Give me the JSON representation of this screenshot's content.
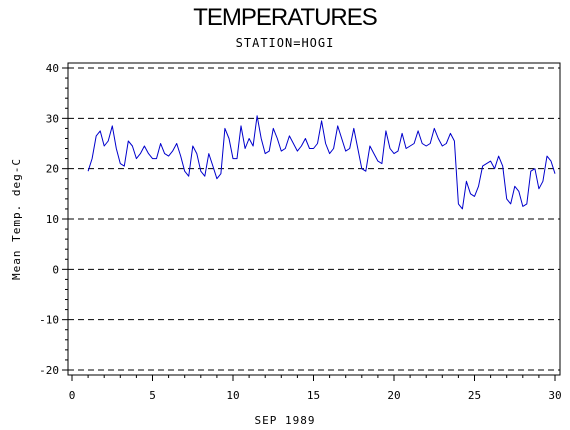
{
  "chart_data": {
    "type": "line",
    "title": "TEMPERATURES",
    "subtitle": "STATION=HOGI",
    "xlabel": "SEP 1989",
    "ylabel": "Mean Temp. deg-C",
    "xlim": [
      0,
      30
    ],
    "ylim": [
      -20,
      40
    ],
    "x_ticks": [
      0,
      5,
      10,
      15,
      20,
      25,
      30
    ],
    "y_ticks": [
      -20,
      -10,
      0,
      10,
      20,
      30,
      40
    ],
    "x_tick_labels": [
      "0",
      "5",
      "10",
      "15",
      "20",
      "25",
      "30"
    ],
    "y_tick_labels": [
      "-20",
      "-10",
      "0",
      "10",
      "20",
      "30",
      "40"
    ],
    "grid": "horizontal dashed",
    "series": [
      {
        "color": "#0000cc",
        "x": [
          1.0,
          1.25,
          1.5,
          1.75,
          2.0,
          2.25,
          2.5,
          2.75,
          3.0,
          3.25,
          3.5,
          3.75,
          4.0,
          4.25,
          4.5,
          4.75,
          5.0,
          5.25,
          5.5,
          5.75,
          6.0,
          6.25,
          6.5,
          6.75,
          7.0,
          7.25,
          7.5,
          7.75,
          8.0,
          8.25,
          8.5,
          8.75,
          9.0,
          9.25,
          9.5,
          9.75,
          10.0,
          10.25,
          10.5,
          10.75,
          11.0,
          11.25,
          11.5,
          11.75,
          12.0,
          12.25,
          12.5,
          12.75,
          13.0,
          13.25,
          13.5,
          13.75,
          14.0,
          14.25,
          14.5,
          14.75,
          15.0,
          15.25,
          15.5,
          15.75,
          16.0,
          16.25,
          16.5,
          16.75,
          17.0,
          17.25,
          17.5,
          17.75,
          18.0,
          18.25,
          18.5,
          18.75,
          19.0,
          19.25,
          19.5,
          19.75,
          20.0,
          20.25,
          20.5,
          20.75,
          21.0,
          21.25,
          21.5,
          21.75,
          22.0,
          22.25,
          22.5,
          22.75,
          23.0,
          23.25,
          23.5,
          23.75,
          24.0,
          24.25,
          24.5,
          24.75,
          25.0,
          25.25,
          25.5,
          25.75,
          26.0,
          26.25,
          26.5,
          26.75,
          27.0,
          27.25,
          27.5,
          27.75,
          28.0,
          28.25,
          28.5,
          28.75,
          29.0,
          29.25,
          29.5,
          29.75,
          30.0
        ],
        "values": [
          19.5,
          22,
          26.5,
          27.5,
          24.5,
          25.5,
          28.5,
          24,
          21,
          20.5,
          25.5,
          24.5,
          22,
          23,
          24.5,
          23,
          22,
          22,
          25,
          23,
          22.5,
          23.5,
          25,
          22.5,
          19.5,
          18.5,
          24.5,
          23,
          19.5,
          18.5,
          23,
          20.5,
          18,
          19,
          28,
          26,
          22,
          22,
          28.5,
          24,
          26,
          24.5,
          30.5,
          26,
          23,
          23.5,
          28,
          26,
          23.5,
          24,
          26.5,
          25,
          23.5,
          24.5,
          26,
          24,
          24,
          25,
          29.5,
          25,
          23,
          24,
          28.5,
          26,
          23.5,
          24,
          28,
          24,
          20,
          19.5,
          24.5,
          23,
          21.5,
          21,
          27.5,
          24,
          23,
          23.5,
          27,
          24,
          24.5,
          25,
          27.5,
          25,
          24.5,
          25,
          28,
          26,
          24.5,
          25,
          27,
          25.5,
          13,
          12,
          17.5,
          15,
          14.5,
          16.5,
          20.5,
          21,
          21.5,
          20,
          22.5,
          20.5,
          14,
          13,
          16.5,
          15.5,
          12.5,
          13,
          19.5,
          20,
          16,
          17.5,
          22.5,
          21.5,
          19
        ]
      }
    ]
  }
}
